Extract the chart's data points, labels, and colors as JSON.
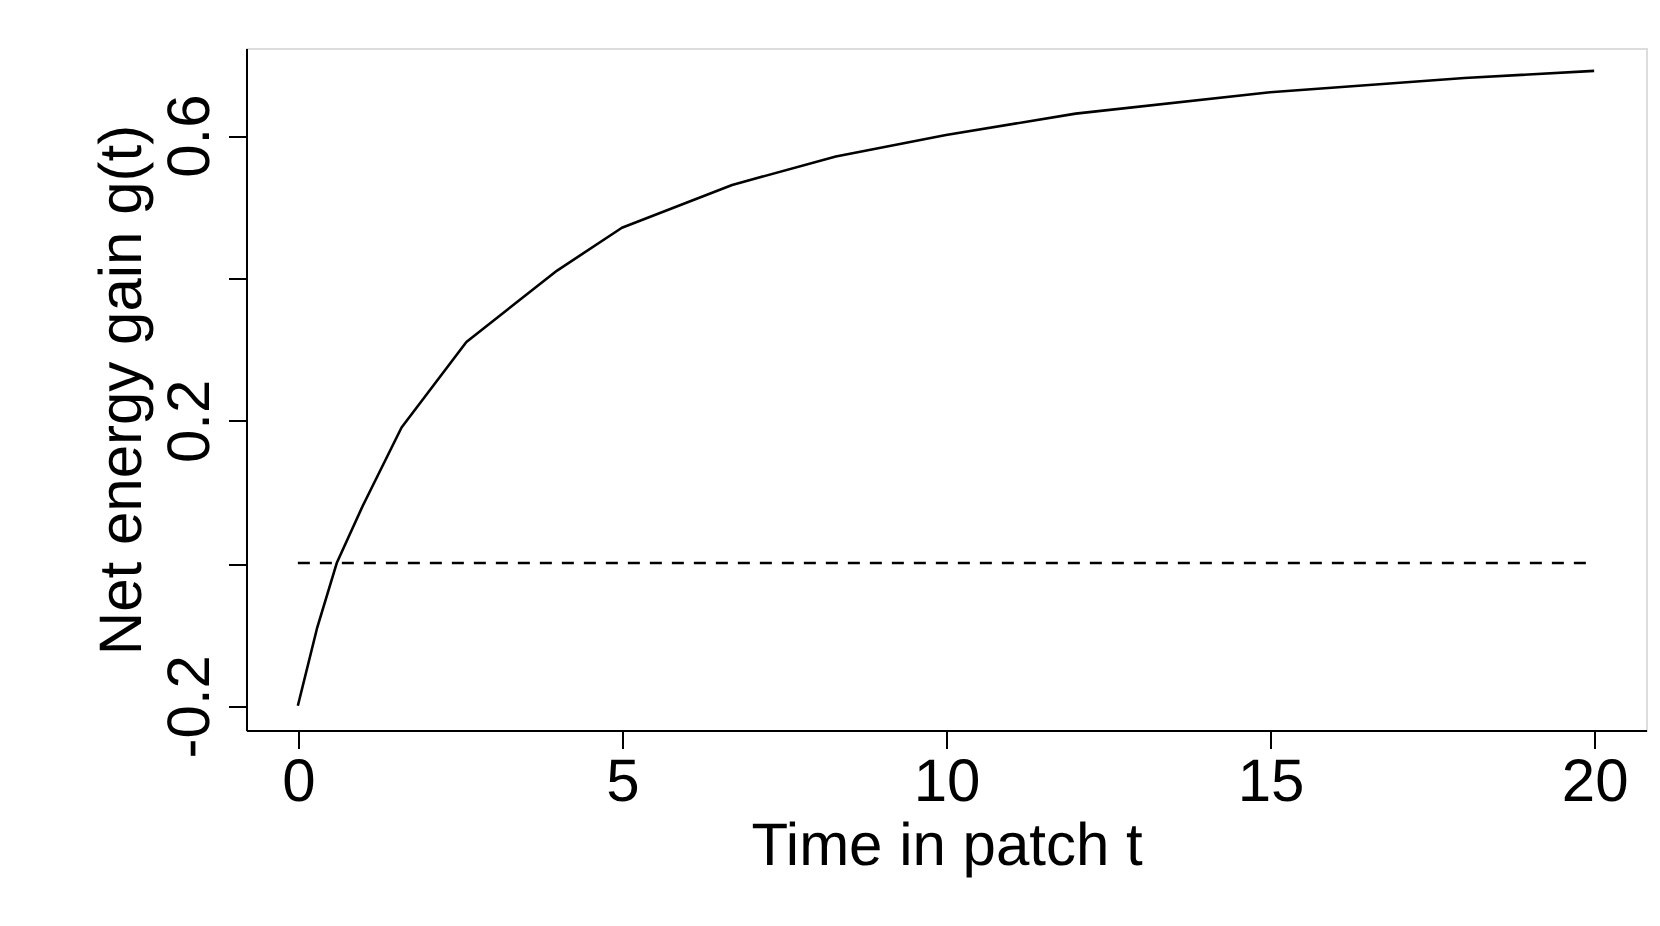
{
  "chart_data": {
    "type": "line",
    "xlabel": "Time in patch t",
    "ylabel": "Net energy gain g(t)",
    "x": [
      0,
      0.3,
      0.6,
      1,
      1.6,
      2.6,
      4,
      5,
      6.7,
      8.3,
      10,
      12,
      15,
      18,
      20
    ],
    "series": [
      {
        "color": "#000000",
        "values": [
          -0.2,
          -0.09,
          0,
          0.08,
          0.19,
          0.31,
          0.41,
          0.47,
          0.53,
          0.57,
          0.6,
          0.63,
          0.66,
          0.68,
          0.69
        ]
      }
    ],
    "xlim": [
      -0.8,
      20.8
    ],
    "ylim": [
      -0.234,
      0.722
    ],
    "xticks": [
      0,
      5,
      10,
      15,
      20
    ],
    "yticks": [
      -0.2,
      {
        "value": 0,
        "label": null
      },
      0.2,
      {
        "value": 0.4,
        "label": null
      },
      0.6
    ],
    "ref_lines": [
      {
        "axis": "y",
        "value": 0,
        "line_style": "dashed",
        "color": "#000000"
      }
    ],
    "grid": false,
    "marker": "none",
    "line_style": "solid"
  }
}
